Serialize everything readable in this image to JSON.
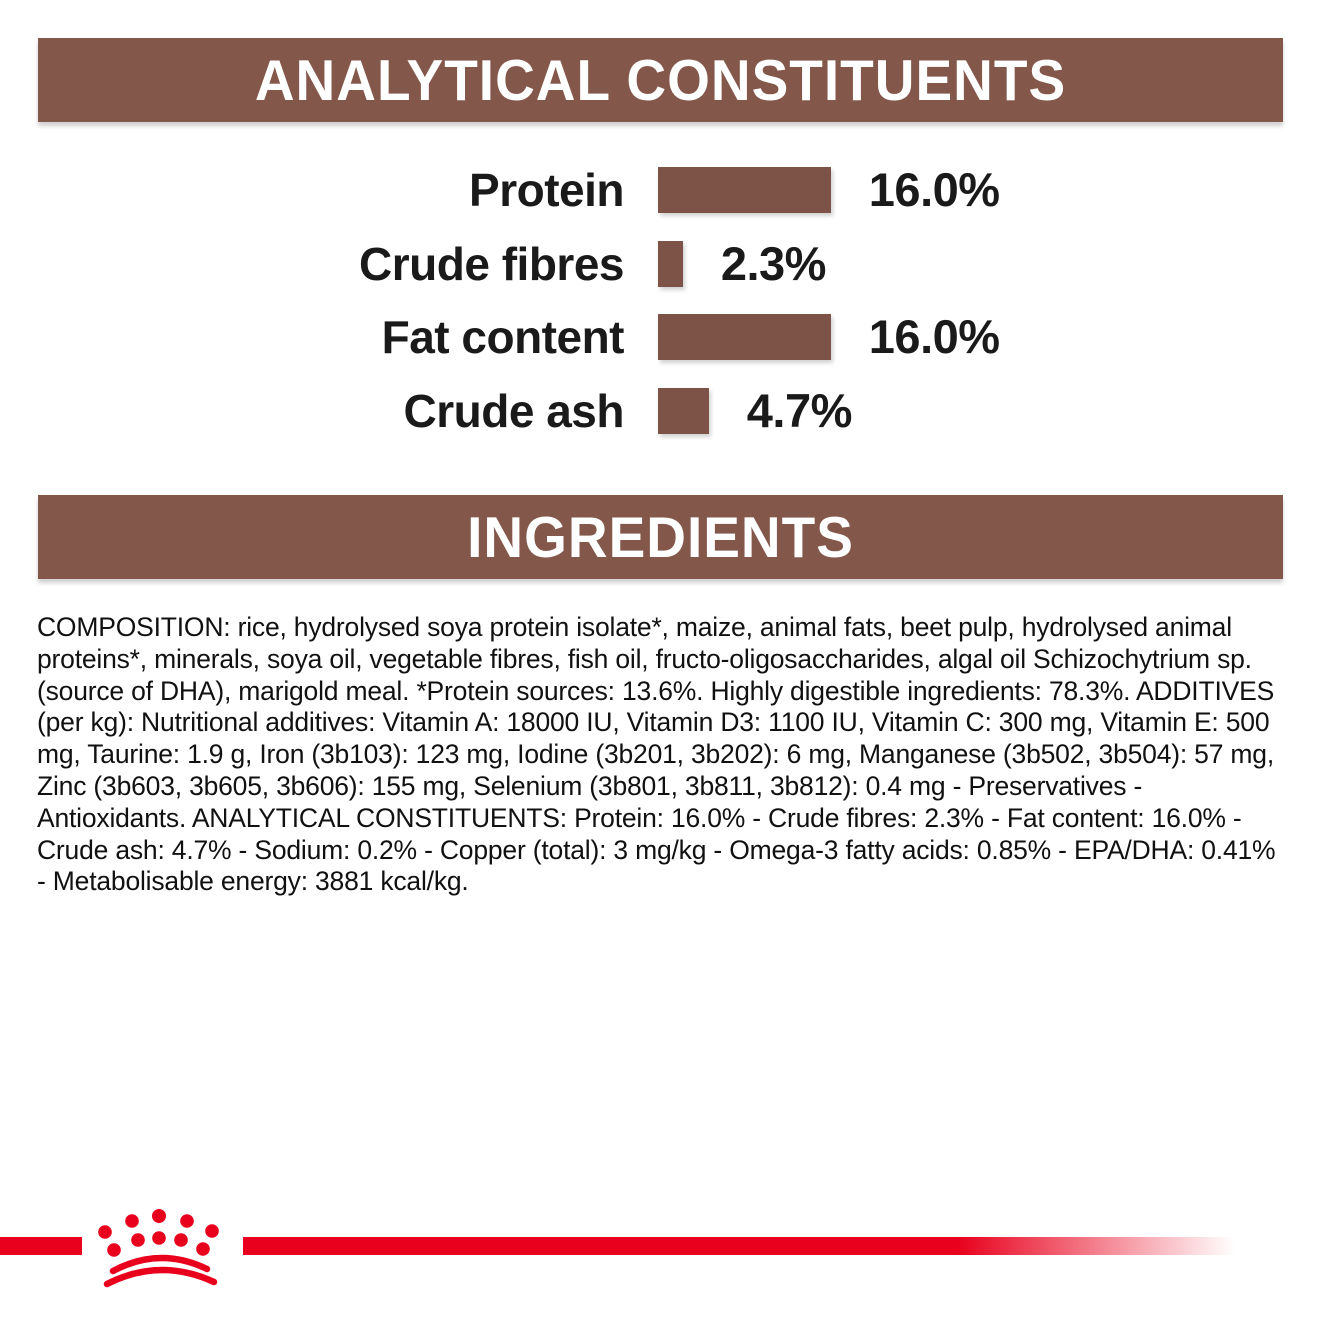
{
  "colors": {
    "band_brown": "#84574B",
    "bar_brown": "#7E5347",
    "brand_red": "#E8001C",
    "band_text_white": "#FFFFFF",
    "text_black": "#111111"
  },
  "analytical_section": {
    "title": "ANALYTICAL CONSTITUENTS"
  },
  "ingredients_section": {
    "title": "INGREDIENTS"
  },
  "chart_data": {
    "type": "bar",
    "orientation": "horizontal",
    "categories": [
      "Protein",
      "Crude fibres",
      "Fat content",
      "Crude ash"
    ],
    "values": [
      16.0,
      2.3,
      16.0,
      4.7
    ],
    "value_labels": [
      "16.0%",
      "2.3%",
      "16.0%",
      "4.7%"
    ],
    "unit": "%",
    "xlim": [
      0,
      16
    ],
    "bar_color": "#7E5347",
    "grid": false,
    "legend": false,
    "title": "ANALYTICAL CONSTITUENTS"
  },
  "composition": {
    "text": "COMPOSITION: rice, hydrolysed soya protein isolate*, maize, animal fats, beet pulp, hydrolysed animal proteins*, minerals, soya oil, vegetable fibres, fish oil, fructo-oligosaccharides, algal oil Schizochytrium sp. (source of DHA), marigold meal. *Protein sources: 13.6%. Highly digestible ingredients: 78.3%. ADDITIVES (per kg): Nutritional additives: Vitamin A: 18000 IU, Vitamin D3: 1100 IU, Vitamin C: 300 mg, Vitamin E: 500 mg, Taurine: 1.9 g, Iron (3b103): 123 mg, Iodine (3b201, 3b202): 6 mg, Manganese (3b502, 3b504): 57 mg, Zinc (3b603, 3b605, 3b606): 155 mg, Selenium (3b801, 3b811, 3b812): 0.4 mg - Preservatives - Antioxidants. ANALYTICAL CONSTITUENTS: Protein: 16.0% - Crude fibres: 2.3% - Fat content: 16.0% - Crude ash: 4.7% - Sodium: 0.2% - Copper (total): 3 mg/kg - Omega-3 fatty acids: 0.85% - EPA/DHA: 0.41% - Metabolisable energy: 3881 kcal/kg."
  },
  "footer": {
    "logo_name": "royal-canin-crown",
    "line_color": "#E8001C"
  }
}
